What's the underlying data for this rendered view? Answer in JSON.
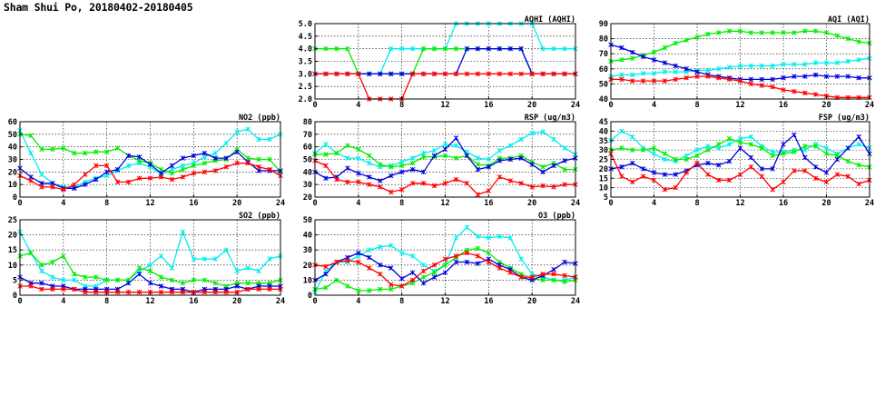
{
  "title": "Sham Shui Po, 20180402-20180405",
  "colors": {
    "day1": "#ff0000",
    "day2": "#00ee00",
    "day3": "#0000dd",
    "day4": "#00eeee"
  },
  "chart_data": [
    {
      "id": "aqhi",
      "type": "line",
      "title": "AQHI (AQHI)",
      "xlim": [
        0,
        24
      ],
      "xticks": [
        0,
        4,
        8,
        12,
        16,
        20,
        24
      ],
      "ylim": [
        2,
        5
      ],
      "yticks": [
        2.0,
        2.5,
        3.0,
        3.5,
        4.0,
        4.5,
        5.0
      ],
      "ytick_decimals": 1,
      "grid": true,
      "x": [
        0,
        1,
        2,
        3,
        4,
        5,
        6,
        7,
        8,
        9,
        10,
        11,
        12,
        13,
        14,
        15,
        16,
        17,
        18,
        19,
        20,
        21,
        22,
        23,
        24
      ],
      "series": [
        {
          "color": "#00eeee",
          "values": [
            3,
            3,
            3,
            3,
            3,
            3,
            3,
            4,
            4,
            4,
            4,
            4,
            4,
            5,
            5,
            5,
            5,
            5,
            5,
            5,
            5,
            4,
            4,
            4,
            4
          ]
        },
        {
          "color": "#00ee00",
          "values": [
            4,
            4,
            4,
            4,
            3,
            3,
            3,
            3,
            3,
            3,
            4,
            4,
            4,
            4,
            4,
            4,
            4,
            4,
            4,
            4,
            3,
            3,
            3,
            3,
            3
          ]
        },
        {
          "color": "#0000dd",
          "values": [
            3,
            3,
            3,
            3,
            3,
            3,
            3,
            3,
            3,
            3,
            3,
            3,
            3,
            3,
            4,
            4,
            4,
            4,
            4,
            4,
            3,
            3,
            3,
            3,
            3
          ]
        },
        {
          "color": "#ff0000",
          "values": [
            3,
            3,
            3,
            3,
            3,
            2,
            2,
            2,
            2,
            3,
            3,
            3,
            3,
            3,
            3,
            3,
            3,
            3,
            3,
            3,
            3,
            3,
            3,
            3,
            3
          ]
        }
      ]
    },
    {
      "id": "aqi",
      "type": "line",
      "title": "AQI (AQI)",
      "xlim": [
        0,
        24
      ],
      "xticks": [
        0,
        4,
        8,
        12,
        16,
        20,
        24
      ],
      "ylim": [
        40,
        90
      ],
      "yticks": [
        40,
        50,
        60,
        70,
        80,
        90
      ],
      "ytick_decimals": 0,
      "grid": true,
      "x": [
        0,
        1,
        2,
        3,
        4,
        5,
        6,
        7,
        8,
        9,
        10,
        11,
        12,
        13,
        14,
        15,
        16,
        17,
        18,
        19,
        20,
        21,
        22,
        23,
        24
      ],
      "series": [
        {
          "color": "#00ee00",
          "values": [
            65,
            66,
            67,
            69,
            71,
            74,
            77,
            79,
            81,
            83,
            84,
            85,
            85,
            84,
            84,
            84,
            84,
            84,
            85,
            85,
            84,
            82,
            80,
            78,
            77
          ]
        },
        {
          "color": "#00eeee",
          "values": [
            55,
            56,
            56,
            57,
            57,
            58,
            58,
            58,
            59,
            59,
            60,
            61,
            62,
            62,
            62,
            62,
            63,
            63,
            63,
            64,
            64,
            64,
            65,
            66,
            67
          ]
        },
        {
          "color": "#0000dd",
          "values": [
            76,
            74,
            71,
            68,
            66,
            64,
            62,
            60,
            58,
            56,
            55,
            54,
            53,
            53,
            53,
            53,
            54,
            55,
            55,
            56,
            55,
            55,
            55,
            54,
            54
          ]
        },
        {
          "color": "#ff0000",
          "values": [
            53,
            53,
            52,
            52,
            52,
            52,
            53,
            54,
            55,
            55,
            54,
            53,
            52,
            50,
            49,
            48,
            46,
            45,
            44,
            43,
            42,
            41,
            41,
            41,
            41
          ]
        }
      ]
    },
    {
      "id": "no2",
      "type": "line",
      "title": "NO2 (ppb)",
      "xlim": [
        0,
        24
      ],
      "xticks": [
        0,
        4,
        8,
        12,
        16,
        20,
        24
      ],
      "ylim": [
        0,
        60
      ],
      "yticks": [
        0,
        10,
        20,
        30,
        40,
        50,
        60
      ],
      "ytick_decimals": 0,
      "grid": true,
      "x": [
        0,
        1,
        2,
        3,
        4,
        5,
        6,
        7,
        8,
        9,
        10,
        11,
        12,
        13,
        14,
        15,
        16,
        17,
        18,
        19,
        20,
        21,
        22,
        23,
        24
      ],
      "series": [
        {
          "color": "#00eeee",
          "values": [
            53,
            35,
            18,
            11,
            8,
            8,
            12,
            15,
            17,
            21,
            25,
            27,
            24,
            18,
            22,
            25,
            27,
            32,
            35,
            43,
            52,
            54,
            46,
            46,
            50
          ]
        },
        {
          "color": "#00ee00",
          "values": [
            50,
            49,
            38,
            38,
            39,
            35,
            35,
            36,
            36,
            39,
            33,
            29,
            27,
            22,
            19,
            22,
            25,
            27,
            29,
            30,
            38,
            31,
            30,
            30,
            20
          ]
        },
        {
          "color": "#0000dd",
          "values": [
            23,
            16,
            11,
            11,
            7,
            7,
            10,
            14,
            20,
            22,
            33,
            32,
            26,
            19,
            25,
            31,
            33,
            35,
            31,
            31,
            36,
            28,
            21,
            21,
            21
          ]
        },
        {
          "color": "#ff0000",
          "values": [
            17,
            13,
            8,
            8,
            6,
            10,
            18,
            25,
            25,
            12,
            12,
            15,
            15,
            16,
            14,
            16,
            19,
            20,
            21,
            24,
            27,
            27,
            24,
            22,
            17
          ]
        }
      ]
    },
    {
      "id": "rsp",
      "type": "line",
      "title": "RSP (ug/m3)",
      "xlim": [
        0,
        24
      ],
      "xticks": [
        0,
        4,
        8,
        12,
        16,
        20,
        24
      ],
      "ylim": [
        20,
        80
      ],
      "yticks": [
        20,
        30,
        40,
        50,
        60,
        70,
        80
      ],
      "ytick_decimals": 0,
      "grid": true,
      "x": [
        0,
        1,
        2,
        3,
        4,
        5,
        6,
        7,
        8,
        9,
        10,
        11,
        12,
        13,
        14,
        15,
        16,
        17,
        18,
        19,
        20,
        21,
        22,
        23,
        24
      ],
      "series": [
        {
          "color": "#00eeee",
          "values": [
            55,
            62,
            55,
            51,
            51,
            47,
            44,
            45,
            48,
            51,
            55,
            57,
            62,
            61,
            56,
            51,
            50,
            57,
            61,
            66,
            71,
            72,
            66,
            59,
            54
          ]
        },
        {
          "color": "#00ee00",
          "values": [
            54,
            54,
            55,
            61,
            58,
            53,
            46,
            44,
            45,
            47,
            52,
            52,
            53,
            51,
            53,
            46,
            45,
            51,
            51,
            53,
            48,
            44,
            47,
            42,
            42
          ]
        },
        {
          "color": "#0000dd",
          "values": [
            40,
            35,
            36,
            43,
            39,
            36,
            33,
            37,
            40,
            42,
            40,
            53,
            58,
            67,
            53,
            42,
            44,
            49,
            50,
            51,
            46,
            40,
            45,
            49,
            51
          ]
        },
        {
          "color": "#ff0000",
          "values": [
            49,
            45,
            34,
            32,
            32,
            30,
            28,
            24,
            26,
            31,
            31,
            29,
            31,
            34,
            31,
            22,
            25,
            36,
            33,
            31,
            28,
            29,
            28,
            30,
            30
          ]
        }
      ]
    },
    {
      "id": "fsp",
      "type": "line",
      "title": "FSP (ug/m3)",
      "xlim": [
        0,
        24
      ],
      "xticks": [
        0,
        4,
        8,
        12,
        16,
        20,
        24
      ],
      "ylim": [
        5,
        45
      ],
      "yticks": [
        5,
        10,
        15,
        20,
        25,
        30,
        35,
        40,
        45
      ],
      "ytick_decimals": 0,
      "grid": true,
      "x": [
        0,
        1,
        2,
        3,
        4,
        5,
        6,
        7,
        8,
        9,
        10,
        11,
        12,
        13,
        14,
        15,
        16,
        17,
        18,
        19,
        20,
        21,
        22,
        23,
        24
      ],
      "series": [
        {
          "color": "#00eeee",
          "values": [
            35,
            40,
            37,
            31,
            28,
            25,
            24,
            27,
            30,
            32,
            31,
            33,
            36,
            37,
            32,
            29,
            29,
            30,
            30,
            33,
            31,
            28,
            31,
            33,
            31
          ]
        },
        {
          "color": "#00ee00",
          "values": [
            30,
            31,
            30,
            30,
            31,
            28,
            25,
            25,
            27,
            30,
            33,
            36,
            34,
            33,
            31,
            27,
            28,
            29,
            32,
            32,
            28,
            27,
            24,
            22,
            21
          ]
        },
        {
          "color": "#0000dd",
          "values": [
            20,
            21,
            23,
            20,
            18,
            17,
            17,
            19,
            22,
            23,
            22,
            24,
            31,
            26,
            20,
            20,
            33,
            38,
            26,
            21,
            18,
            25,
            31,
            37,
            28
          ]
        },
        {
          "color": "#ff0000",
          "values": [
            28,
            16,
            13,
            16,
            14,
            9,
            10,
            18,
            23,
            17,
            14,
            14,
            17,
            21,
            16,
            9,
            13,
            19,
            19,
            15,
            13,
            17,
            16,
            12,
            14
          ]
        }
      ]
    },
    {
      "id": "so2",
      "type": "line",
      "title": "SO2 (ppb)",
      "xlim": [
        0,
        24
      ],
      "xticks": [
        0,
        4,
        8,
        12,
        16,
        20,
        24
      ],
      "ylim": [
        0,
        25
      ],
      "yticks": [
        0,
        5,
        10,
        15,
        20,
        25
      ],
      "ytick_decimals": 0,
      "grid": true,
      "x": [
        0,
        1,
        2,
        3,
        4,
        5,
        6,
        7,
        8,
        9,
        10,
        11,
        12,
        13,
        14,
        15,
        16,
        17,
        18,
        19,
        20,
        21,
        22,
        23,
        24
      ],
      "series": [
        {
          "color": "#00eeee",
          "values": [
            21,
            14,
            8,
            6,
            5,
            5,
            3,
            3,
            5,
            5,
            5,
            8,
            10,
            13,
            9,
            21,
            12,
            12,
            12,
            15,
            8,
            9,
            8,
            12,
            13
          ]
        },
        {
          "color": "#00ee00",
          "values": [
            13,
            14,
            10,
            11,
            13,
            7,
            6,
            6,
            5,
            5,
            5,
            9,
            8,
            6,
            5,
            4,
            5,
            5,
            4,
            3,
            4,
            4,
            4,
            4,
            5
          ]
        },
        {
          "color": "#0000dd",
          "values": [
            6,
            4,
            4,
            3,
            3,
            2,
            2,
            2,
            2,
            2,
            4,
            7,
            4,
            3,
            2,
            2,
            1,
            2,
            2,
            2,
            3,
            2,
            3,
            3,
            3
          ]
        },
        {
          "color": "#ff0000",
          "values": [
            3,
            3,
            2,
            2,
            2,
            2,
            1,
            1,
            1,
            1,
            1,
            1,
            1,
            1,
            1,
            1,
            1,
            1,
            1,
            1,
            1,
            2,
            2,
            2,
            2
          ]
        }
      ]
    },
    {
      "id": "o3",
      "type": "line",
      "title": "O3 (ppb)",
      "xlim": [
        0,
        24
      ],
      "xticks": [
        0,
        4,
        8,
        12,
        16,
        20,
        24
      ],
      "ylim": [
        0,
        50
      ],
      "yticks": [
        0,
        10,
        20,
        30,
        40,
        50
      ],
      "ytick_decimals": 0,
      "grid": true,
      "x": [
        0,
        1,
        2,
        3,
        4,
        5,
        6,
        7,
        8,
        9,
        10,
        11,
        12,
        13,
        14,
        15,
        16,
        17,
        18,
        19,
        20,
        21,
        22,
        23,
        24
      ],
      "series": [
        {
          "color": "#00eeee",
          "values": [
            2,
            16,
            22,
            22,
            26,
            30,
            32,
            33,
            28,
            26,
            20,
            16,
            20,
            38,
            45,
            39,
            38,
            39,
            38,
            24,
            14,
            12,
            10,
            10,
            12
          ]
        },
        {
          "color": "#00ee00",
          "values": [
            4,
            5,
            10,
            6,
            3,
            3,
            4,
            4,
            6,
            8,
            12,
            15,
            20,
            25,
            30,
            31,
            28,
            22,
            18,
            14,
            11,
            10,
            10,
            9,
            10
          ]
        },
        {
          "color": "#0000dd",
          "values": [
            10,
            14,
            22,
            25,
            28,
            25,
            20,
            18,
            11,
            15,
            8,
            12,
            15,
            22,
            22,
            21,
            24,
            20,
            17,
            12,
            10,
            13,
            17,
            22,
            21
          ]
        },
        {
          "color": "#ff0000",
          "values": [
            20,
            19,
            22,
            23,
            22,
            18,
            14,
            7,
            6,
            10,
            16,
            20,
            24,
            26,
            28,
            26,
            22,
            18,
            15,
            12,
            12,
            14,
            14,
            13,
            12
          ]
        }
      ]
    }
  ]
}
